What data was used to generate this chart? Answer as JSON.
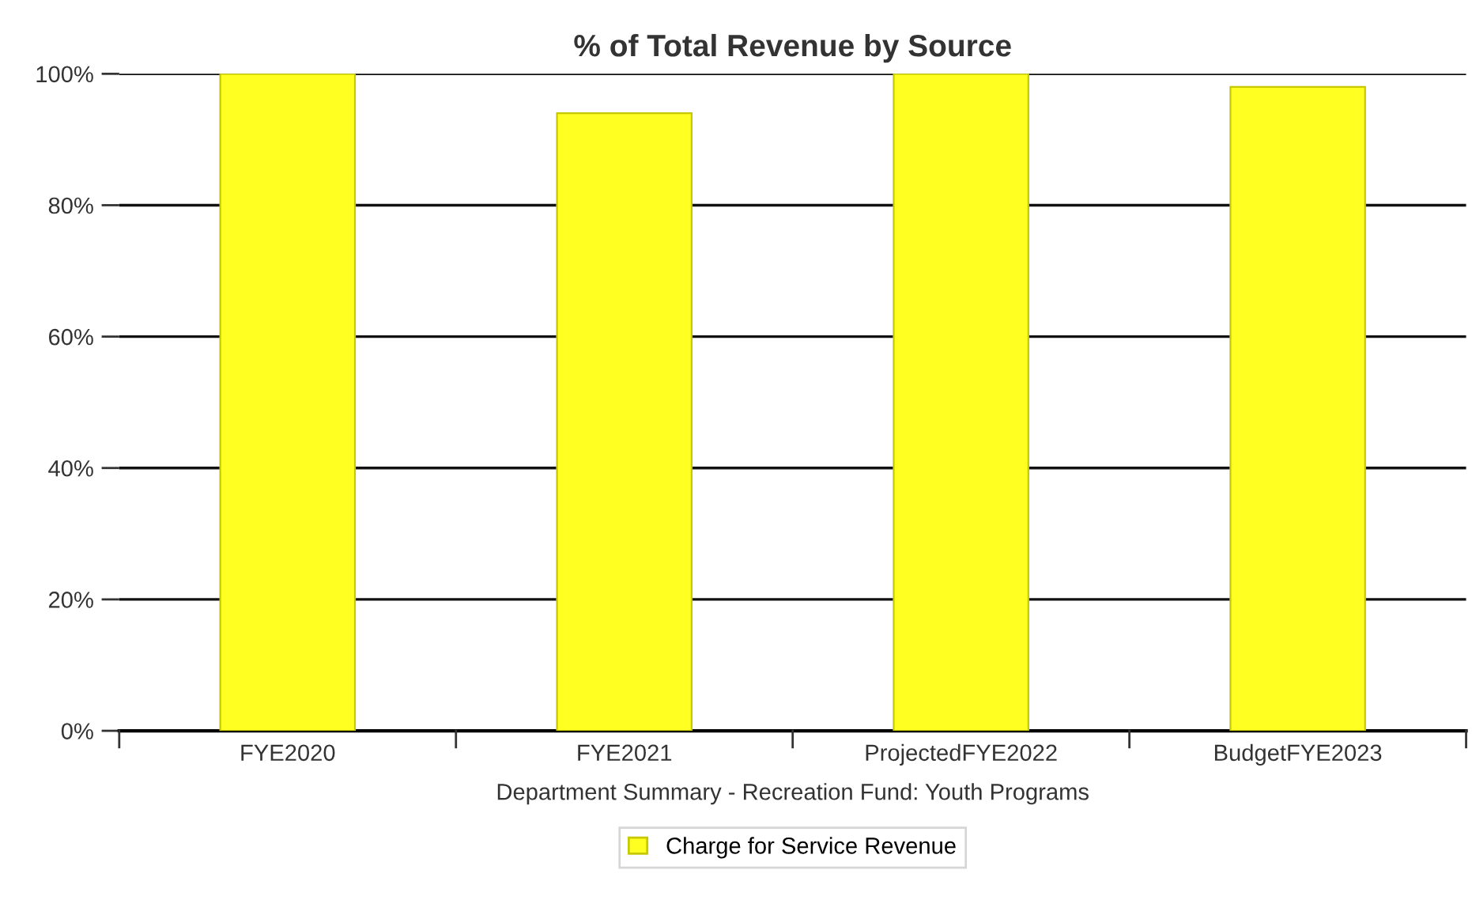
{
  "chart_data": {
    "type": "bar",
    "title": "% of Total Revenue by Source",
    "xlabel": "Department Summary - Recreation Fund: Youth Programs",
    "categories": [
      "FYE2020",
      "FYE2021",
      "ProjectedFYE2022",
      "BudgetFYE2023"
    ],
    "series": [
      {
        "name": "Charge for Service Revenue",
        "color": "#ffff22",
        "values": [
          100,
          94,
          100,
          98
        ]
      }
    ],
    "ylim": [
      0,
      100
    ],
    "yticks": [
      {
        "value": 0,
        "label": "0%"
      },
      {
        "value": 20,
        "label": "20%"
      },
      {
        "value": 40,
        "label": "40%"
      },
      {
        "value": 60,
        "label": "60%"
      },
      {
        "value": 80,
        "label": "80%"
      },
      {
        "value": 100,
        "label": "100%"
      }
    ],
    "grid": "y",
    "legend": "bottom"
  }
}
